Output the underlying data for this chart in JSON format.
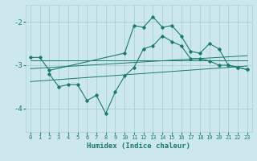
{
  "xlabel": "Humidex (Indice chaleur)",
  "bg_color": "#cce8ec",
  "grid_color": "#aacfd6",
  "line_color": "#1a7a6e",
  "ylim": [
    -4.55,
    -1.6
  ],
  "xlim": [
    -0.5,
    23.5
  ],
  "yticks": [
    -4,
    -3,
    -2
  ],
  "xticks": [
    0,
    1,
    2,
    3,
    4,
    5,
    6,
    7,
    8,
    9,
    10,
    11,
    12,
    13,
    14,
    15,
    16,
    17,
    18,
    19,
    20,
    21,
    22,
    23
  ],
  "series1_x": [
    0,
    1,
    2,
    10,
    11,
    12,
    13,
    14,
    15,
    16,
    17,
    18,
    19,
    20,
    21,
    22,
    23
  ],
  "series1_y": [
    -2.82,
    -2.82,
    -3.12,
    -2.72,
    -2.08,
    -2.12,
    -1.88,
    -2.12,
    -2.08,
    -2.32,
    -2.68,
    -2.72,
    -2.5,
    -2.62,
    -3.0,
    -3.05,
    -3.1
  ],
  "series2_x": [
    2,
    3,
    4,
    5,
    6,
    7,
    8,
    9,
    10,
    11,
    12,
    13,
    14,
    15,
    16,
    17,
    18,
    19,
    20,
    21,
    22,
    23
  ],
  "series2_y": [
    -3.2,
    -3.5,
    -3.45,
    -3.45,
    -3.82,
    -3.7,
    -4.12,
    -3.62,
    -3.25,
    -3.05,
    -2.62,
    -2.55,
    -2.32,
    -2.45,
    -2.55,
    -2.85,
    -2.85,
    -2.9,
    -3.0,
    -3.0,
    -3.05,
    -3.1
  ],
  "line3_x": [
    0,
    23
  ],
  "line3_y": [
    -2.88,
    -2.88
  ],
  "line4_x": [
    0,
    23
  ],
  "line4_y": [
    -3.08,
    -2.78
  ],
  "line5_x": [
    0,
    23
  ],
  "line5_y": [
    -3.38,
    -3.02
  ]
}
